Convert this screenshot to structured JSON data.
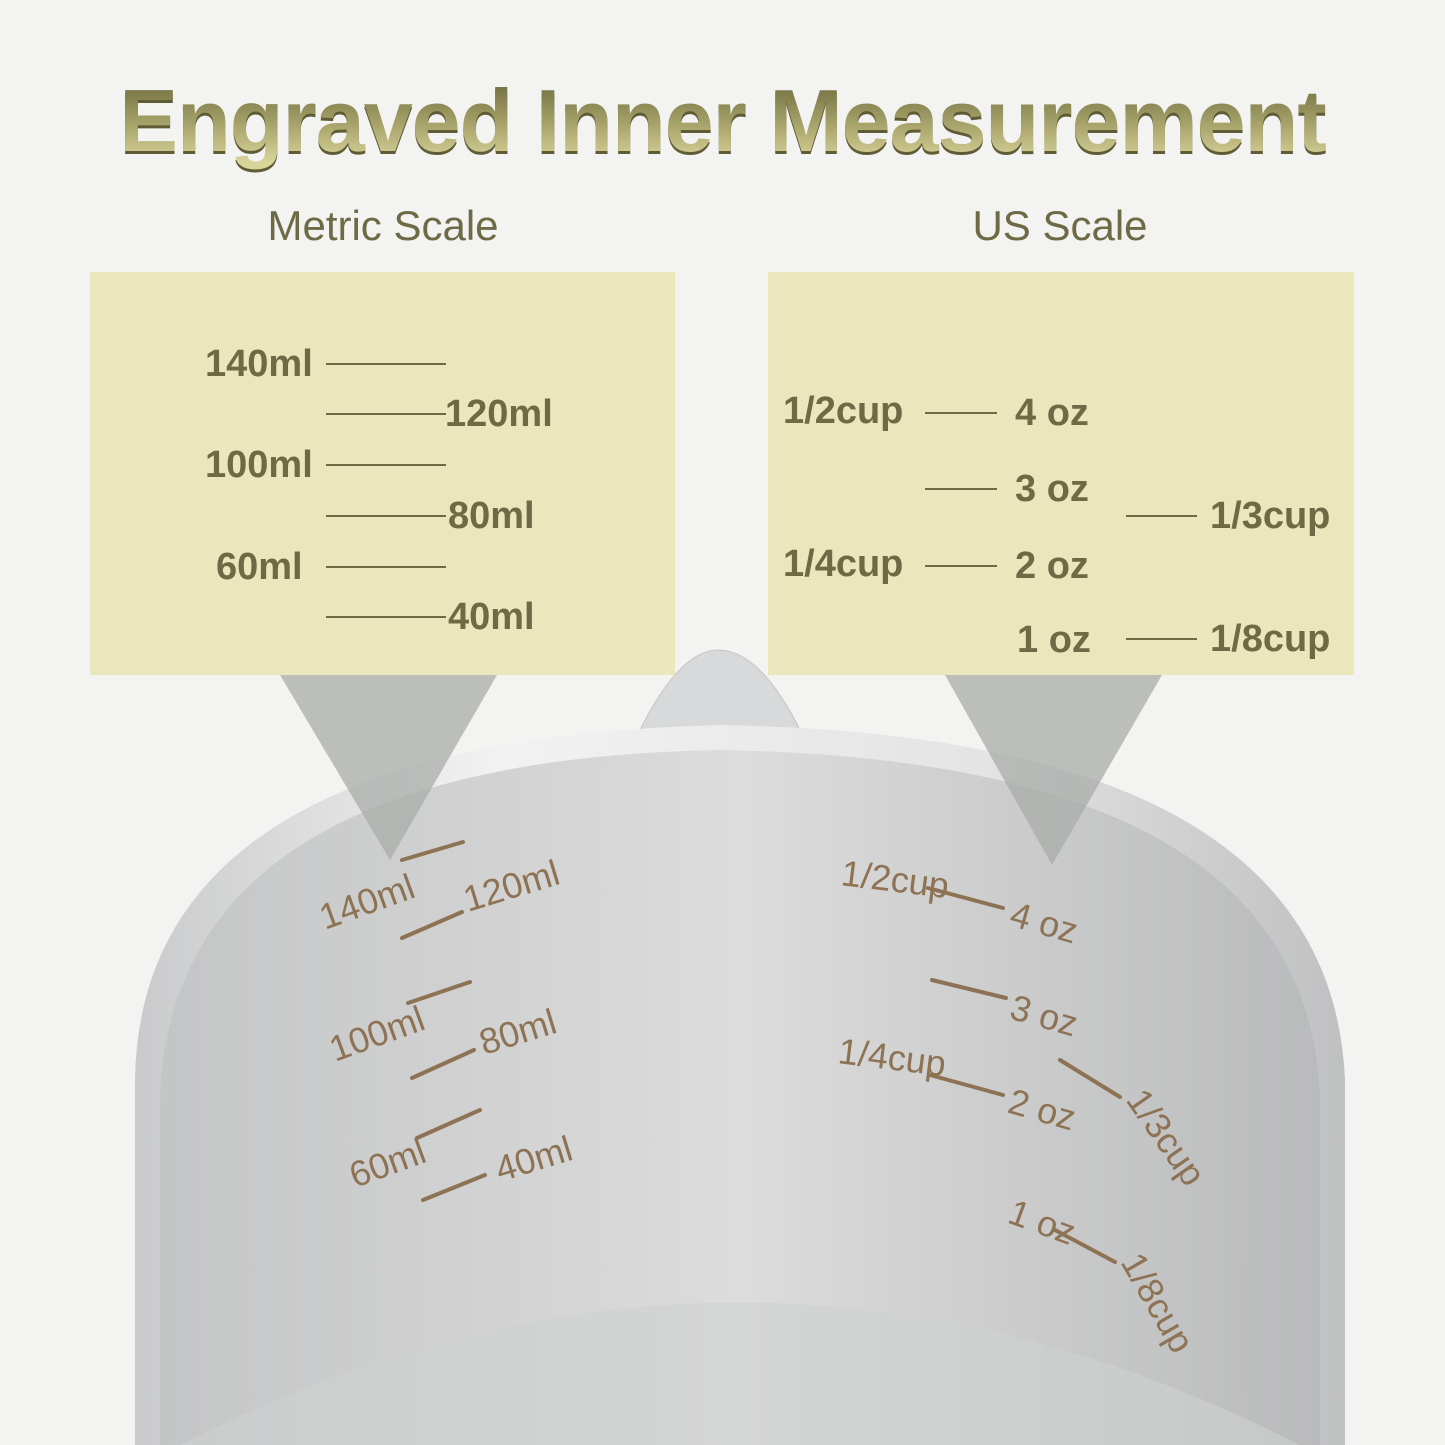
{
  "title": "Engraved Inner Measurement",
  "metric": {
    "heading": "Metric Scale",
    "marks": [
      "140ml",
      "120ml",
      "100ml",
      "80ml",
      "60ml",
      "40ml"
    ]
  },
  "us": {
    "heading": "US Scale",
    "cup_half": "1/2cup",
    "cup_quarter": "1/4cup",
    "cup_third": "1/3cup",
    "cup_eighth": "1/8cup",
    "oz4": "4 oz",
    "oz3": "3 oz",
    "oz2": "2 oz",
    "oz1": "1 oz"
  },
  "colors": {
    "panel": "#ebe7bd",
    "text": "#6d6a45",
    "engraving": "#8d7354"
  }
}
